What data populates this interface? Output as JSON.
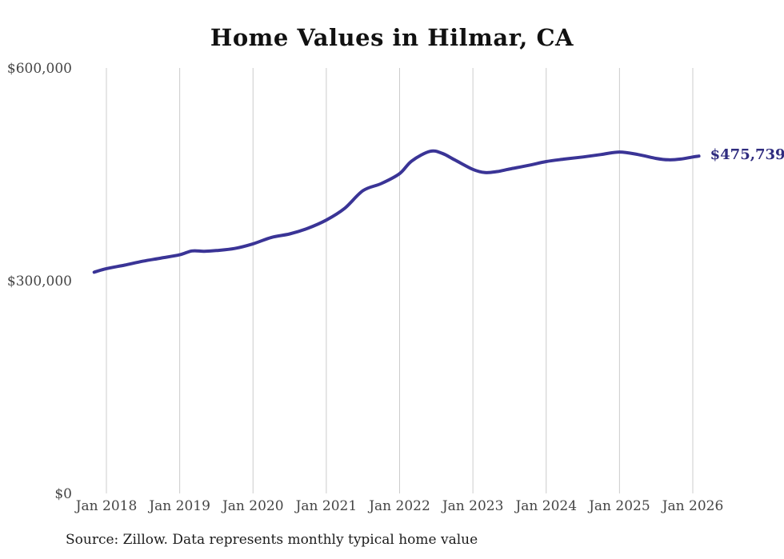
{
  "page": {
    "background": "#ffffff"
  },
  "chart": {
    "title": "Home Values in Hilmar, CA",
    "end_label": "$475,739",
    "source_note": "Source: Zillow. Data represents monthly typical home value"
  },
  "chart_data": {
    "type": "line",
    "title": "Home Values in Hilmar, CA",
    "xlabel": "",
    "ylabel": "",
    "grid": "vertical-only",
    "legend": "none",
    "ylim": [
      0,
      600000
    ],
    "y_tick_values": [
      0,
      300000,
      600000
    ],
    "y_tick_labels": [
      "$0",
      "$300,000",
      "$600,000"
    ],
    "x_tick_years": [
      2018,
      2019,
      2020,
      2021,
      2022,
      2023,
      2024,
      2025,
      2026
    ],
    "x_tick_labels": [
      "Jan 2018",
      "Jan 2019",
      "Jan 2020",
      "Jan 2021",
      "Jan 2022",
      "Jan 2023",
      "Jan 2024",
      "Jan 2025",
      "Jan 2026"
    ],
    "final_value": 475739,
    "colors": {
      "line": "#3a3496",
      "end_label": "#2f2c7f",
      "gridline": "#cccccc",
      "tick_text": "#454545",
      "title_text": "#111111"
    },
    "series": [
      {
        "name": "Typical home value",
        "points": [
          {
            "date": "2017-11",
            "value": 312000
          },
          {
            "date": "2018-01",
            "value": 317000
          },
          {
            "date": "2018-04",
            "value": 322000
          },
          {
            "date": "2018-07",
            "value": 327500
          },
          {
            "date": "2018-10",
            "value": 332000
          },
          {
            "date": "2019-01",
            "value": 336500
          },
          {
            "date": "2019-03",
            "value": 342000
          },
          {
            "date": "2019-05",
            "value": 341500
          },
          {
            "date": "2019-07",
            "value": 342500
          },
          {
            "date": "2019-10",
            "value": 345500
          },
          {
            "date": "2020-01",
            "value": 352000
          },
          {
            "date": "2020-04",
            "value": 361000
          },
          {
            "date": "2020-07",
            "value": 366000
          },
          {
            "date": "2020-10",
            "value": 374000
          },
          {
            "date": "2021-01",
            "value": 385500
          },
          {
            "date": "2021-04",
            "value": 402000
          },
          {
            "date": "2021-07",
            "value": 427000
          },
          {
            "date": "2021-10",
            "value": 437000
          },
          {
            "date": "2022-01",
            "value": 451000
          },
          {
            "date": "2022-03",
            "value": 469000
          },
          {
            "date": "2022-06",
            "value": 482500
          },
          {
            "date": "2022-08",
            "value": 479500
          },
          {
            "date": "2022-10",
            "value": 470500
          },
          {
            "date": "2023-01",
            "value": 457000
          },
          {
            "date": "2023-03",
            "value": 452500
          },
          {
            "date": "2023-05",
            "value": 454000
          },
          {
            "date": "2023-07",
            "value": 457500
          },
          {
            "date": "2023-10",
            "value": 462500
          },
          {
            "date": "2024-01",
            "value": 468000
          },
          {
            "date": "2024-04",
            "value": 471500
          },
          {
            "date": "2024-07",
            "value": 474500
          },
          {
            "date": "2024-10",
            "value": 478000
          },
          {
            "date": "2025-01",
            "value": 481500
          },
          {
            "date": "2025-04",
            "value": 478000
          },
          {
            "date": "2025-07",
            "value": 472500
          },
          {
            "date": "2025-09",
            "value": 470500
          },
          {
            "date": "2025-11",
            "value": 471500
          },
          {
            "date": "2026-01",
            "value": 474500
          },
          {
            "date": "2026-02",
            "value": 475739
          }
        ]
      }
    ]
  }
}
